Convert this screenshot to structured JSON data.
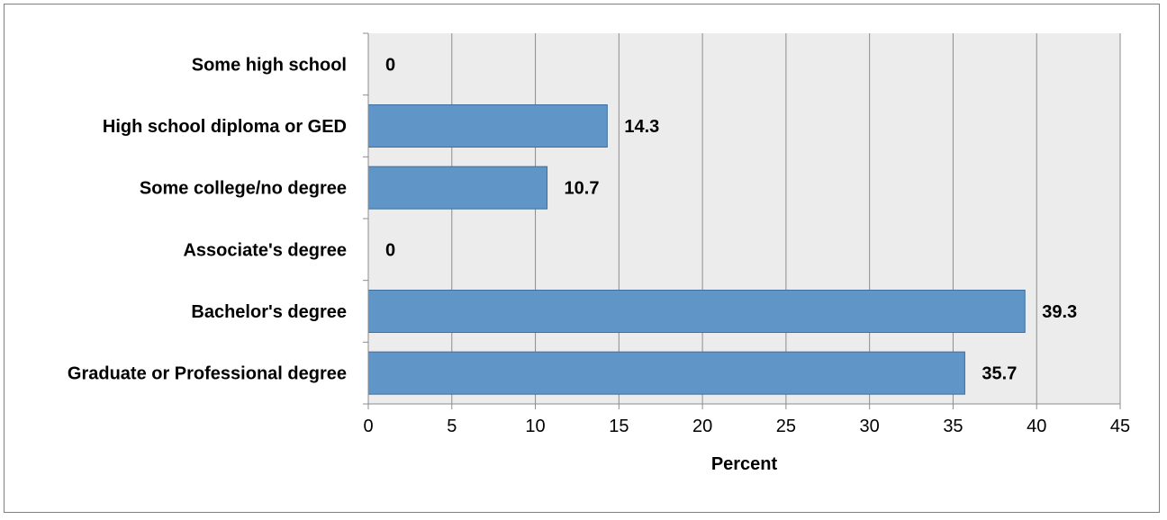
{
  "chart_data": {
    "type": "bar",
    "orientation": "horizontal",
    "categories": [
      "Some high school",
      "High school diploma or GED",
      "Some college/no degree",
      "Associate's degree",
      "Bachelor's degree",
      "Graduate or Professional degree"
    ],
    "values": [
      0,
      14.3,
      10.7,
      0,
      39.3,
      35.7
    ],
    "value_labels": [
      "0",
      "14.3",
      "10.7",
      "0",
      "39.3",
      "35.7"
    ],
    "xlabel": "Percent",
    "ylabel": "",
    "title": "",
    "xlim": [
      0,
      45
    ],
    "xticks": [
      0,
      5,
      10,
      15,
      20,
      25,
      30,
      35,
      40,
      45
    ],
    "grid": "vertical",
    "legend": "none",
    "colors": {
      "bar_fill": "#5f95c7",
      "bar_stroke": "#3e6f9e",
      "plot_bg": "#ececec",
      "grid": "#8c8c8c",
      "frame": "#808080"
    }
  }
}
